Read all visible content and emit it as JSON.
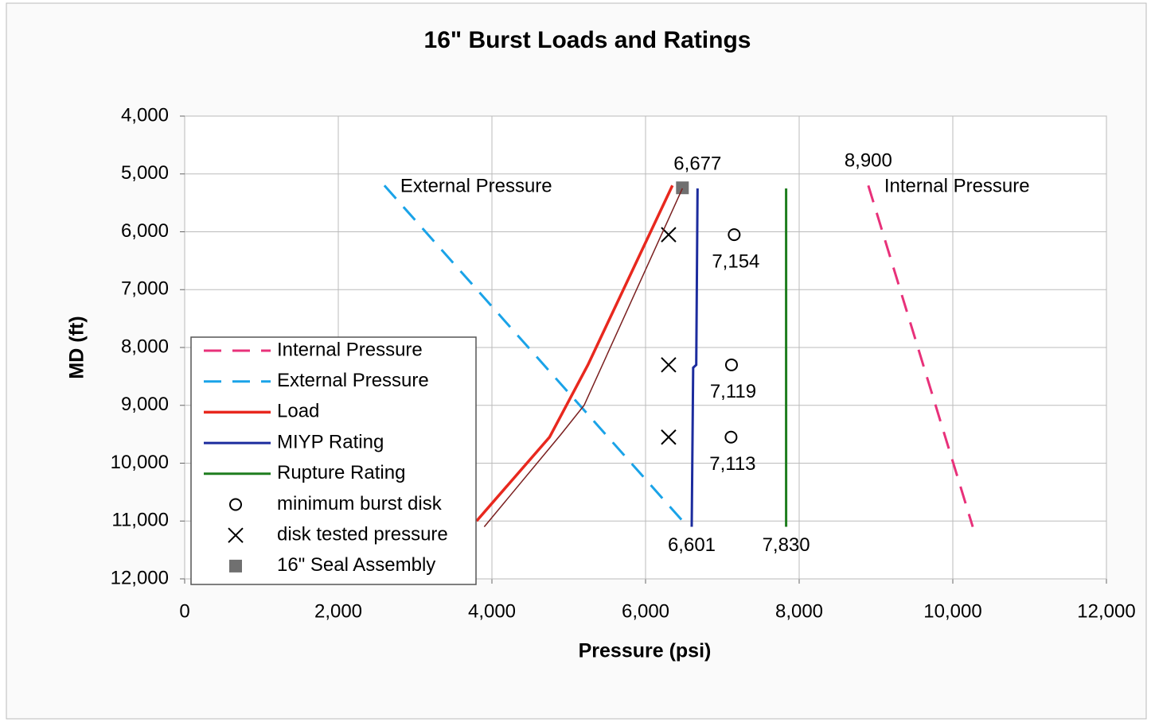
{
  "chart_data": {
    "type": "line",
    "title": "16\" Burst Loads and Ratings",
    "x_label": "Pressure (psi)",
    "y_label": "MD (ft)",
    "xlim": [
      0,
      12000
    ],
    "ylim": [
      4000,
      12000
    ],
    "y_inverted": true,
    "grid": true,
    "legend": "lower-left",
    "xticks": [
      0,
      {
        "value": 2000,
        "label": "2,000"
      },
      {
        "value": 4000,
        "label": "4,000"
      },
      {
        "value": 6000,
        "label": "6,000"
      },
      {
        "value": 8000,
        "label": "8,000"
      },
      {
        "value": 10000,
        "label": "10,000"
      },
      {
        "value": 12000,
        "label": "12,000"
      }
    ],
    "yticks": [
      {
        "value": 4000,
        "label": "4,000"
      },
      {
        "value": 5000,
        "label": "5,000"
      },
      {
        "value": 6000,
        "label": "6,000"
      },
      {
        "value": 7000,
        "label": "7,000"
      },
      {
        "value": 8000,
        "label": "8,000"
      },
      {
        "value": 9000,
        "label": "9,000"
      },
      {
        "value": 10000,
        "label": "10,000"
      },
      {
        "value": 11000,
        "label": "11,000"
      },
      {
        "value": 12000,
        "label": "12,000"
      }
    ],
    "series": [
      {
        "name": "Internal Pressure",
        "color": "#e8317a",
        "dash": true,
        "linewidth": 3,
        "annotate": true,
        "x": [
          8900,
          10260
        ],
        "values": [
          5200,
          11100
        ],
        "value_labels": [
          "8,900",
          null
        ]
      },
      {
        "name": "External Pressure",
        "color": "#1aa3e8",
        "dash": true,
        "linewidth": 3,
        "annotate": true,
        "x": [
          2600,
          6550
        ],
        "values": [
          5200,
          11100
        ]
      },
      {
        "name": "Load",
        "color": "#e8281e",
        "linewidth": 3.5,
        "x": [
          6350,
          5250,
          4750,
          3800
        ],
        "values": [
          5200,
          8300,
          9550,
          11000
        ]
      },
      {
        "name": "MIYP Rating",
        "color": "#1c2c9e",
        "linewidth": 3,
        "x": [
          6677,
          6660,
          6620,
          6601
        ],
        "values": [
          5250,
          8300,
          8350,
          11100
        ],
        "value_labels": [
          "6,677",
          null,
          null,
          "6,601"
        ]
      },
      {
        "name": "Rupture Rating",
        "color": "#1e7d1e",
        "linewidth": 3,
        "x": [
          7830,
          7830
        ],
        "values": [
          5250,
          11100
        ],
        "value_labels": [
          null,
          "7,830"
        ]
      },
      {
        "name": "minimum burst disk",
        "color": "#000000",
        "marker": "circle",
        "x": [
          7154,
          7119,
          7113
        ],
        "values": [
          6050,
          8300,
          9550
        ],
        "value_labels": [
          "7,154",
          "7,119",
          "7,113"
        ]
      },
      {
        "name": "disk tested pressure",
        "color": "#000000",
        "marker": "x",
        "x": [
          6300,
          6300,
          6300
        ],
        "values": [
          6050,
          8300,
          9550
        ]
      },
      {
        "name": "16\" Seal Assembly",
        "color": "#707070",
        "marker": "square",
        "x": [
          6480
        ],
        "values": [
          5240
        ]
      },
      {
        "color": "#7a1f1f",
        "linewidth": 1.5,
        "x": [
          6480,
          5200,
          4900,
          3900
        ],
        "values": [
          5250,
          9000,
          9500,
          11100
        ]
      }
    ]
  }
}
